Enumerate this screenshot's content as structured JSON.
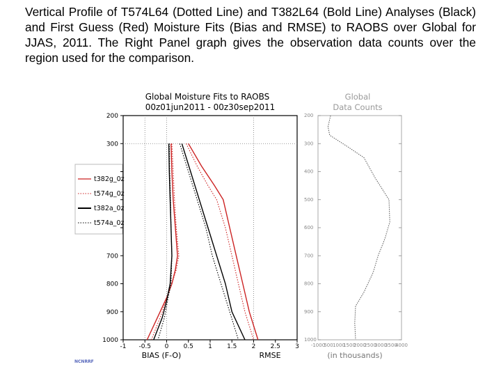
{
  "caption": "Vertical Profile of T574L64 (Dotted Line) and T382L64 (Bold Line) Analyses (Black) and First Guess (Red) Moisture Fits (Bias and RMSE) to RAOBS over Global for JJAS, 2011. The Right Panel graph gives the observation data counts over the region used for the comparison.",
  "credit": "NCNRRF",
  "colors": {
    "first_guess": "#cc2222",
    "analysis": "#000000",
    "right_panel": "#888888",
    "grid": "#777777"
  },
  "chart_data": [
    {
      "type": "line",
      "title": "Global Moisture Fits to RAOBS",
      "subtitle": "00z01jun2011 - 00z30sep2011",
      "ylabel": "",
      "y_ticks": [
        200,
        300,
        400,
        500,
        600,
        700,
        800,
        900,
        1000
      ],
      "y_tick_labels": [
        "200",
        "300",
        "",
        "",
        "",
        "700",
        "800",
        "900",
        "1000"
      ],
      "ylim": [
        200,
        1000
      ],
      "x_ticks": [
        -1,
        -0.5,
        0,
        0.5,
        1,
        1.5,
        2,
        2.5,
        3
      ],
      "x_tick_labels": [
        "-1",
        "-0.5",
        "0",
        "0.5",
        "1",
        "1.5",
        "2",
        "2.5",
        "3"
      ],
      "xlim": [
        -1,
        3
      ],
      "xlabel_left": "BIAS (F-O)",
      "xlabel_right": "RMSE",
      "grid": "dotted verticals at -0.5, 0, 2; horizontal at 300",
      "legend": [
        "t382g_0z",
        "t574g_0z",
        "t382a_0z",
        "t574a_0z"
      ],
      "series": [
        {
          "name": "t382g_0z",
          "kind": "bias",
          "style": "solid",
          "color": "red",
          "points": [
            [
              0.1,
              300
            ],
            [
              0.12,
              400
            ],
            [
              0.15,
              500
            ],
            [
              0.2,
              600
            ],
            [
              0.25,
              700
            ],
            [
              0.2,
              750
            ],
            [
              0.12,
              800
            ],
            [
              0.0,
              850
            ],
            [
              -0.15,
              900
            ],
            [
              -0.45,
              1000
            ]
          ]
        },
        {
          "name": "t574g_0z",
          "kind": "bias",
          "style": "dotted",
          "color": "red",
          "points": [
            [
              0.12,
              300
            ],
            [
              0.15,
              400
            ],
            [
              0.18,
              500
            ],
            [
              0.22,
              600
            ],
            [
              0.28,
              700
            ],
            [
              0.22,
              750
            ],
            [
              0.12,
              800
            ],
            [
              0.0,
              850
            ],
            [
              -0.1,
              900
            ],
            [
              -0.35,
              1000
            ]
          ]
        },
        {
          "name": "t382a_0z",
          "kind": "bias",
          "style": "solid",
          "color": "black",
          "points": [
            [
              0.05,
              300
            ],
            [
              0.06,
              400
            ],
            [
              0.08,
              500
            ],
            [
              0.1,
              600
            ],
            [
              0.12,
              700
            ],
            [
              0.08,
              800
            ],
            [
              0.0,
              860
            ],
            [
              -0.1,
              920
            ],
            [
              -0.3,
              1000
            ]
          ]
        },
        {
          "name": "t574a_0z",
          "kind": "bias",
          "style": "dotted",
          "color": "black",
          "points": [
            [
              0.06,
              300
            ],
            [
              0.07,
              400
            ],
            [
              0.09,
              500
            ],
            [
              0.1,
              600
            ],
            [
              0.12,
              700
            ],
            [
              0.1,
              800
            ],
            [
              0.02,
              860
            ],
            [
              -0.05,
              920
            ],
            [
              -0.2,
              1000
            ]
          ]
        },
        {
          "name": "t382g_0z",
          "kind": "rmse",
          "style": "solid",
          "color": "red",
          "points": [
            [
              0.5,
              300
            ],
            [
              0.8,
              380
            ],
            [
              1.1,
              450
            ],
            [
              1.3,
              500
            ],
            [
              1.45,
              600
            ],
            [
              1.6,
              700
            ],
            [
              1.75,
              800
            ],
            [
              1.9,
              900
            ],
            [
              2.1,
              1000
            ]
          ]
        },
        {
          "name": "t574g_0z",
          "kind": "rmse",
          "style": "dotted",
          "color": "red",
          "points": [
            [
              0.45,
              300
            ],
            [
              0.7,
              380
            ],
            [
              0.95,
              450
            ],
            [
              1.15,
              500
            ],
            [
              1.35,
              600
            ],
            [
              1.5,
              700
            ],
            [
              1.65,
              800
            ],
            [
              1.8,
              900
            ],
            [
              2.0,
              1000
            ]
          ]
        },
        {
          "name": "t382a_0z",
          "kind": "rmse",
          "style": "solid",
          "color": "black",
          "points": [
            [
              0.35,
              300
            ],
            [
              0.55,
              400
            ],
            [
              0.75,
              500
            ],
            [
              0.95,
              600
            ],
            [
              1.15,
              700
            ],
            [
              1.35,
              800
            ],
            [
              1.5,
              900
            ],
            [
              1.8,
              1000
            ]
          ]
        },
        {
          "name": "t574a_0z",
          "kind": "rmse",
          "style": "dotted",
          "color": "black",
          "points": [
            [
              0.3,
              300
            ],
            [
              0.5,
              400
            ],
            [
              0.7,
              500
            ],
            [
              0.9,
              600
            ],
            [
              1.05,
              700
            ],
            [
              1.25,
              800
            ],
            [
              1.45,
              900
            ],
            [
              1.65,
              1000
            ]
          ]
        }
      ]
    },
    {
      "type": "line",
      "title": "Global",
      "subtitle": "Data Counts",
      "xlabel": "(in thousands)",
      "x_tick_labels": [
        "-1000",
        "500",
        "1000",
        "1500",
        "2000",
        "2500",
        "3000",
        "3500",
        "4000"
      ],
      "y_tick_labels": [
        "200",
        "300",
        "400",
        "500",
        "600",
        "700",
        "800",
        "900",
        "1000"
      ],
      "ylim": [
        200,
        1000
      ],
      "series": [
        {
          "name": "Data Counts",
          "style": "dotted",
          "color": "grey",
          "points": [
            [
              "low",
              200
            ],
            [
              "low",
              250
            ],
            [
              "mid",
              300
            ],
            [
              "mid",
              400
            ],
            [
              "high",
              500
            ],
            [
              "high",
              600
            ],
            [
              "mid",
              700
            ],
            [
              "mid",
              800
            ],
            [
              "low",
              900
            ],
            [
              "low",
              1000
            ]
          ]
        }
      ]
    }
  ]
}
